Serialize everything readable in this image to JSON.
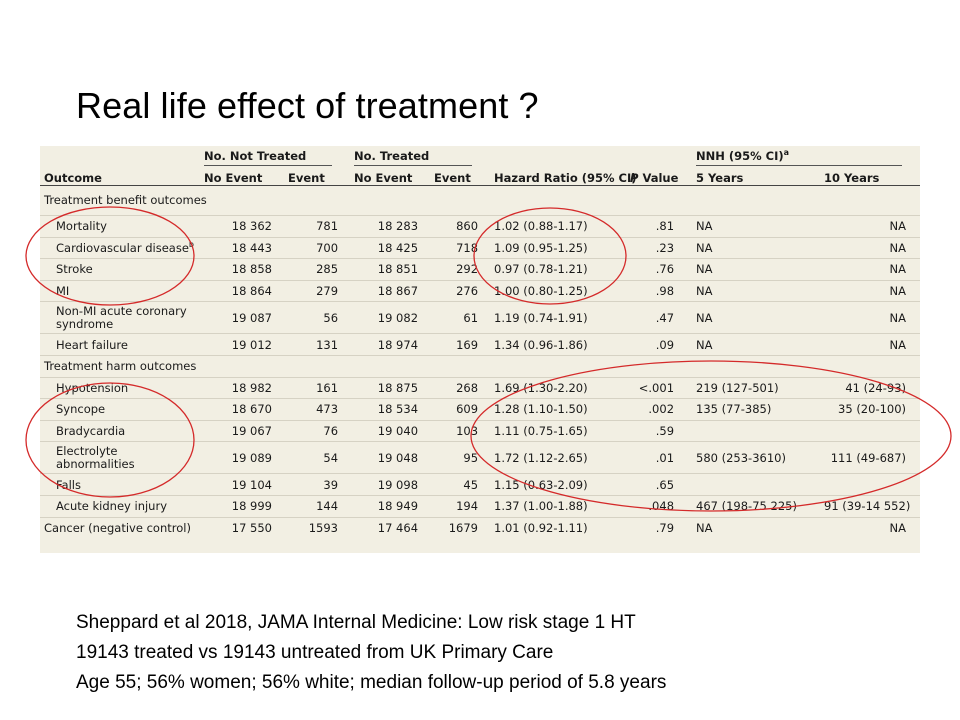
{
  "title": "Real life effect of treatment ?",
  "table": {
    "group_headers": {
      "not_treated": "No. Not Treated",
      "treated": "No. Treated",
      "nnh": "NNH (95% CI)",
      "nnh_sup": "a"
    },
    "columns": [
      "Outcome",
      "No Event",
      "Event",
      "No Event",
      "Event",
      "Hazard Ratio (95% CI)",
      "P Value",
      "5 Years",
      "10 Years"
    ],
    "rows": [
      {
        "type": "section",
        "label": "Treatment benefit outcomes"
      },
      {
        "label": "Mortality",
        "nt_no": "18 362",
        "nt_ev": "781",
        "t_no": "18 283",
        "t_ev": "860",
        "hr": "1.02 (0.88-1.17)",
        "p": ".81",
        "y5": "NA",
        "y10": "NA"
      },
      {
        "label": "Cardiovascular disease",
        "sup": "b",
        "nt_no": "18 443",
        "nt_ev": "700",
        "t_no": "18 425",
        "t_ev": "718",
        "hr": "1.09 (0.95-1.25)",
        "p": ".23",
        "y5": "NA",
        "y10": "NA"
      },
      {
        "label": "Stroke",
        "nt_no": "18 858",
        "nt_ev": "285",
        "t_no": "18 851",
        "t_ev": "292",
        "hr": "0.97 (0.78-1.21)",
        "p": ".76",
        "y5": "NA",
        "y10": "NA"
      },
      {
        "label": "MI",
        "nt_no": "18 864",
        "nt_ev": "279",
        "t_no": "18 867",
        "t_ev": "276",
        "hr": "1.00 (0.80-1.25)",
        "p": ".98",
        "y5": "NA",
        "y10": "NA"
      },
      {
        "label": "Non-MI acute coronary syndrome",
        "tall": true,
        "nt_no": "19 087",
        "nt_ev": "56",
        "t_no": "19 082",
        "t_ev": "61",
        "hr": "1.19 (0.74-1.91)",
        "p": ".47",
        "y5": "NA",
        "y10": "NA"
      },
      {
        "label": "Heart failure",
        "nt_no": "19 012",
        "nt_ev": "131",
        "t_no": "18 974",
        "t_ev": "169",
        "hr": "1.34 (0.96-1.86)",
        "p": ".09",
        "y5": "NA",
        "y10": "NA"
      },
      {
        "type": "section",
        "label": "Treatment harm outcomes"
      },
      {
        "label": "Hypotension",
        "nt_no": "18 982",
        "nt_ev": "161",
        "t_no": "18 875",
        "t_ev": "268",
        "hr": "1.69 (1.30-2.20)",
        "p": "<.001",
        "y5": "219 (127-501)",
        "y10": "41 (24-93)"
      },
      {
        "label": "Syncope",
        "nt_no": "18 670",
        "nt_ev": "473",
        "t_no": "18 534",
        "t_ev": "609",
        "hr": "1.28 (1.10-1.50)",
        "p": ".002",
        "y5": "135 (77-385)",
        "y10": "35 (20-100)"
      },
      {
        "label": "Bradycardia",
        "nt_no": "19 067",
        "nt_ev": "76",
        "t_no": "19 040",
        "t_ev": "103",
        "hr": "1.11 (0.75-1.65)",
        "p": ".59",
        "y5": "",
        "y10": ""
      },
      {
        "label": "Electrolyte abnormalities",
        "tall": true,
        "nt_no": "19 089",
        "nt_ev": "54",
        "t_no": "19 048",
        "t_ev": "95",
        "hr": "1.72 (1.12-2.65)",
        "p": ".01",
        "y5": "580 (253-3610)",
        "y10": "111 (49-687)"
      },
      {
        "label": "Falls",
        "nt_no": "19 104",
        "nt_ev": "39",
        "t_no": "19 098",
        "t_ev": "45",
        "hr": "1.15 (0.63-2.09)",
        "p": ".65",
        "y5": "",
        "y10": ""
      },
      {
        "label": "Acute kidney injury",
        "nt_no": "18 999",
        "nt_ev": "144",
        "t_no": "18 949",
        "t_ev": "194",
        "hr": "1.37 (1.00-1.88)",
        "p": ".048",
        "y5": "467 (198-75 225)",
        "y10": "91 (39-14 552)"
      },
      {
        "type": "outer",
        "label": "Cancer (negative control)",
        "nt_no": "17 550",
        "nt_ev": "1593",
        "t_no": "17 464",
        "t_ev": "1679",
        "hr": "1.01 (0.92-1.11)",
        "p": ".79",
        "y5": "NA",
        "y10": "NA"
      }
    ]
  },
  "annotation_color": "#d42a2a",
  "footnote": [
    "Sheppard et al 2018, JAMA Internal Medicine:  Low risk stage 1 HT",
    "19143 treated vs 19143 untreated from UK Primary Care",
    "Age 55; 56% women; 56% white; median follow-up period of 5.8 years"
  ]
}
